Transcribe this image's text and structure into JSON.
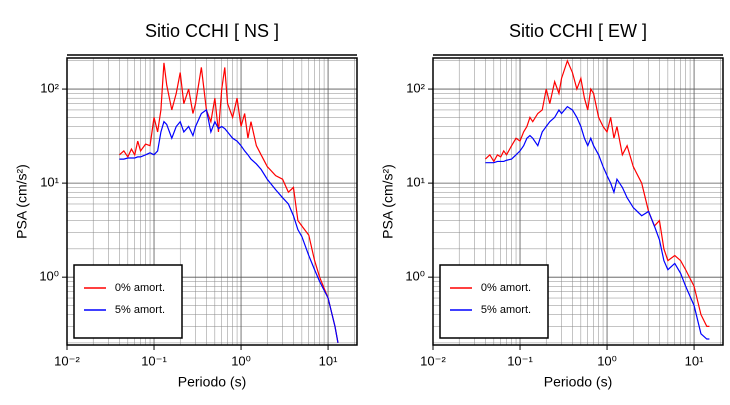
{
  "chart_data": [
    {
      "type": "line",
      "title": "Sitio CCHI [ NS ]",
      "xlabel": "Periodo (s)",
      "ylabel": "PSA (cm/s²)",
      "xscale": "log",
      "yscale": "log",
      "grid": true,
      "minor_grid": true,
      "legend": "lower left",
      "xlim": [
        0.01,
        21.5
      ],
      "ylim": [
        0.19,
        214
      ],
      "xticks": [
        {
          "value": 0.01,
          "label": "10⁻²"
        },
        {
          "value": 0.1,
          "label": "10⁻¹"
        },
        {
          "value": 1,
          "label": "10⁰"
        },
        {
          "value": 10,
          "label": "10¹"
        }
      ],
      "yticks": [
        {
          "value": 1,
          "label": "10⁰"
        },
        {
          "value": 10,
          "label": "10¹"
        },
        {
          "value": 100,
          "label": "10²"
        }
      ],
      "x": [
        0.04,
        0.045,
        0.05,
        0.055,
        0.06,
        0.065,
        0.07,
        0.08,
        0.09,
        0.1,
        0.11,
        0.12,
        0.13,
        0.14,
        0.16,
        0.18,
        0.2,
        0.22,
        0.25,
        0.28,
        0.3,
        0.35,
        0.4,
        0.45,
        0.5,
        0.55,
        0.6,
        0.65,
        0.7,
        0.8,
        0.9,
        1.0,
        1.1,
        1.2,
        1.3,
        1.5,
        1.7,
        2.0,
        2.5,
        3.0,
        3.5,
        4.0,
        4.5,
        5,
        6,
        7,
        8,
        10,
        12,
        13
      ],
      "series": [
        {
          "name": "0% amort.",
          "color": "#ff0000",
          "values": [
            20,
            22,
            19,
            23,
            20,
            28,
            22,
            26,
            25,
            50,
            35,
            60,
            190,
            110,
            60,
            90,
            150,
            70,
            100,
            55,
            70,
            170,
            60,
            45,
            80,
            35,
            100,
            170,
            70,
            50,
            80,
            40,
            55,
            30,
            45,
            25,
            20,
            15,
            12,
            11,
            8,
            9,
            4,
            3.5,
            2.8,
            1.5,
            1.0,
            0.6,
            0.3,
            0.2
          ]
        },
        {
          "name": "5% amort.",
          "color": "#0000ff",
          "values": [
            18,
            18,
            18.5,
            18.5,
            18.5,
            19,
            19,
            20,
            21,
            20,
            22,
            35,
            45,
            42,
            30,
            40,
            45,
            35,
            40,
            32,
            40,
            55,
            60,
            35,
            45,
            38,
            40,
            38,
            35,
            30,
            28,
            25,
            22,
            20,
            18,
            16,
            14,
            11,
            8.5,
            7,
            6,
            4.5,
            3.2,
            2.7,
            1.7,
            1.2,
            0.9,
            0.6,
            0.3,
            0.2
          ]
        }
      ]
    },
    {
      "type": "line",
      "title": "Sitio CCHI [ EW ]",
      "xlabel": "Periodo (s)",
      "ylabel": "PSA (cm/s²)",
      "xscale": "log",
      "yscale": "log",
      "grid": true,
      "minor_grid": true,
      "legend": "lower left",
      "xlim": [
        0.01,
        21.5
      ],
      "ylim": [
        0.19,
        214
      ],
      "xticks": [
        {
          "value": 0.01,
          "label": "10⁻²"
        },
        {
          "value": 0.1,
          "label": "10⁻¹"
        },
        {
          "value": 1,
          "label": "10⁰"
        },
        {
          "value": 10,
          "label": "10¹"
        }
      ],
      "yticks": [
        {
          "value": 1,
          "label": "10⁰"
        },
        {
          "value": 10,
          "label": "10¹"
        },
        {
          "value": 100,
          "label": "10²"
        }
      ],
      "x": [
        0.04,
        0.045,
        0.05,
        0.055,
        0.06,
        0.065,
        0.07,
        0.08,
        0.09,
        0.1,
        0.11,
        0.12,
        0.13,
        0.14,
        0.16,
        0.18,
        0.2,
        0.22,
        0.25,
        0.28,
        0.3,
        0.35,
        0.4,
        0.45,
        0.5,
        0.55,
        0.6,
        0.65,
        0.7,
        0.8,
        0.9,
        1.0,
        1.1,
        1.2,
        1.3,
        1.5,
        1.7,
        2.0,
        2.5,
        3.0,
        3.5,
        4.0,
        4.5,
        5,
        6,
        7,
        8,
        10,
        12,
        14,
        15
      ],
      "series": [
        {
          "name": "0% amort.",
          "color": "#ff0000",
          "values": [
            18,
            20,
            17,
            20,
            19,
            22,
            20,
            25,
            30,
            28,
            35,
            40,
            50,
            45,
            55,
            60,
            100,
            70,
            120,
            90,
            130,
            200,
            150,
            100,
            130,
            80,
            60,
            100,
            90,
            50,
            40,
            35,
            50,
            30,
            40,
            20,
            25,
            15,
            10,
            5,
            3.5,
            4,
            2,
            1.5,
            1.7,
            1.5,
            1.2,
            0.8,
            0.4,
            0.3,
            0.3
          ]
        },
        {
          "name": "5% amort.",
          "color": "#0000ff",
          "values": [
            16.5,
            16.5,
            16.5,
            17,
            17,
            17,
            17.5,
            18,
            20,
            22,
            25,
            30,
            32,
            30,
            25,
            35,
            40,
            45,
            50,
            60,
            55,
            65,
            60,
            50,
            40,
            30,
            25,
            30,
            25,
            20,
            15,
            12,
            10,
            8,
            11,
            9,
            7,
            5.5,
            4.5,
            5,
            3.5,
            2.5,
            1.5,
            1.2,
            1.4,
            1.1,
            0.8,
            0.5,
            0.25,
            0.22,
            0.22
          ]
        }
      ]
    }
  ]
}
